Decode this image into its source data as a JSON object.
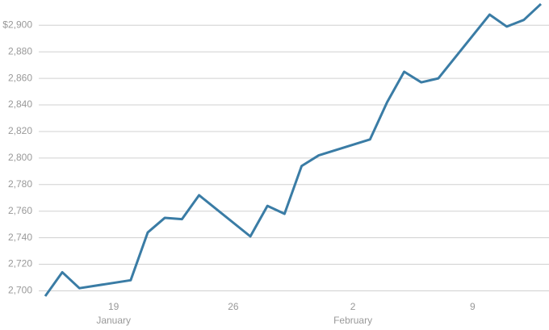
{
  "chart_data": {
    "type": "line",
    "x": [
      "01-15",
      "01-16",
      "01-17",
      "01-20",
      "01-21",
      "01-22",
      "01-23",
      "01-24",
      "01-27",
      "01-28",
      "01-29",
      "01-30",
      "01-31",
      "02-03",
      "02-04",
      "02-05",
      "02-06",
      "02-07",
      "02-10",
      "02-11",
      "02-12",
      "02-13"
    ],
    "series": [
      {
        "color": "#3a7ca5",
        "values": [
          2696,
          2714,
          2702,
          2708,
          2744,
          2755,
          2754,
          2772,
          2741,
          2764,
          2758,
          2794,
          2802,
          2814,
          2842,
          2865,
          2857,
          2860,
          2908,
          2899,
          2904,
          2916
        ]
      }
    ],
    "xlim": [
      "01-15",
      "02-13"
    ],
    "xticks": [
      {
        "value": "01-19",
        "label": "19",
        "group_label": "January"
      },
      {
        "value": "01-26",
        "label": "26"
      },
      {
        "value": "02-02",
        "label": "2",
        "group_label": "February"
      },
      {
        "value": "02-09",
        "label": "9"
      }
    ],
    "ylim": [
      2693,
      2919
    ],
    "yticks": [
      {
        "value": 2700,
        "label": "2,700"
      },
      {
        "value": 2720,
        "label": "2,720"
      },
      {
        "value": 2740,
        "label": "2,740"
      },
      {
        "value": 2760,
        "label": "2,760"
      },
      {
        "value": 2780,
        "label": "2,780"
      },
      {
        "value": 2800,
        "label": "2,800"
      },
      {
        "value": 2820,
        "label": "2,820"
      },
      {
        "value": 2840,
        "label": "2,840"
      },
      {
        "value": 2860,
        "label": "2,860"
      },
      {
        "value": 2880,
        "label": "2,880"
      },
      {
        "value": 2900,
        "label": "$2,900"
      }
    ],
    "grid": true
  }
}
